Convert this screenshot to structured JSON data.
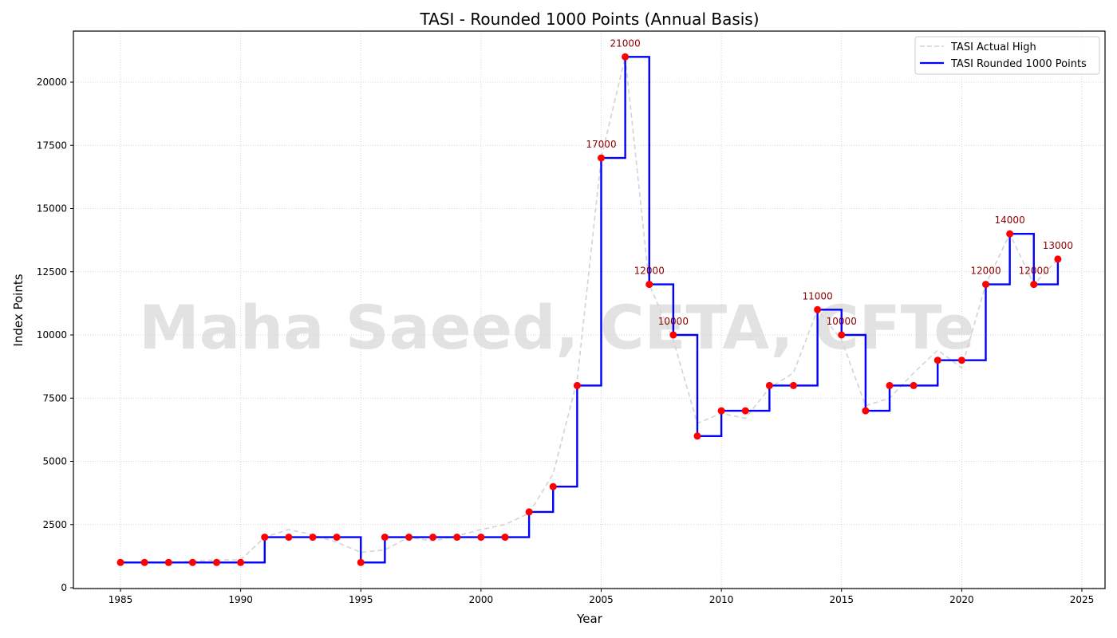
{
  "chart_data": {
    "type": "line",
    "title": "TASI - Rounded 1000 Points (Annual Basis)",
    "xlabel": "Year",
    "ylabel": "Index Points",
    "xlim": [
      1983,
      2026
    ],
    "ylim": [
      0,
      22000
    ],
    "x_ticks": [
      1985,
      1990,
      1995,
      2000,
      2005,
      2010,
      2015,
      2020,
      2025
    ],
    "y_ticks": [
      0,
      2500,
      5000,
      7500,
      10000,
      12500,
      15000,
      17500,
      20000
    ],
    "grid": true,
    "legend_position": "upper right",
    "watermark": "Maha Saeed, CETA, CFTe",
    "x": [
      1985,
      1986,
      1987,
      1988,
      1989,
      1990,
      1991,
      1992,
      1993,
      1994,
      1995,
      1996,
      1997,
      1998,
      1999,
      2000,
      2001,
      2002,
      2003,
      2004,
      2005,
      2006,
      2007,
      2008,
      2009,
      2010,
      2011,
      2012,
      2013,
      2014,
      2015,
      2016,
      2017,
      2018,
      2019,
      2020,
      2021,
      2022,
      2023,
      2024
    ],
    "series": [
      {
        "name": "TASI Actual High",
        "style": "dashed",
        "color": "#d3d3d3",
        "values": [
          1000,
          1000,
          1000,
          1050,
          1100,
          1100,
          2000,
          2300,
          2100,
          1800,
          1400,
          1500,
          2000,
          1850,
          2050,
          2300,
          2500,
          2950,
          4500,
          8200,
          17000,
          21000,
          12000,
          9800,
          6500,
          6900,
          6700,
          7900,
          8500,
          11000,
          9800,
          7200,
          7500,
          8500,
          9400,
          8700,
          12000,
          14000,
          12000,
          13000
        ]
      },
      {
        "name": "TASI Rounded 1000 Points",
        "style": "step",
        "color": "#0000ff",
        "marker_color": "#ff0000",
        "values": [
          1000,
          1000,
          1000,
          1000,
          1000,
          1000,
          2000,
          2000,
          2000,
          2000,
          1000,
          2000,
          2000,
          2000,
          2000,
          2000,
          2000,
          3000,
          4000,
          8000,
          17000,
          21000,
          12000,
          10000,
          6000,
          7000,
          7000,
          8000,
          8000,
          11000,
          10000,
          7000,
          8000,
          8000,
          9000,
          9000,
          12000,
          14000,
          12000,
          13000
        ]
      }
    ],
    "annotations": [
      {
        "x": 2005,
        "y": 17000,
        "text": "17000"
      },
      {
        "x": 2006,
        "y": 21000,
        "text": "21000"
      },
      {
        "x": 2007,
        "y": 12000,
        "text": "12000"
      },
      {
        "x": 2008,
        "y": 10000,
        "text": "10000"
      },
      {
        "x": 2014,
        "y": 11000,
        "text": "11000"
      },
      {
        "x": 2015,
        "y": 10000,
        "text": "10000"
      },
      {
        "x": 2021,
        "y": 12000,
        "text": "12000"
      },
      {
        "x": 2022,
        "y": 14000,
        "text": "14000"
      },
      {
        "x": 2023,
        "y": 12000,
        "text": "12000"
      },
      {
        "x": 2024,
        "y": 13000,
        "text": "13000"
      }
    ]
  },
  "legend": {
    "items": [
      {
        "label": "TASI Actual High"
      },
      {
        "label": "TASI Rounded 1000 Points"
      }
    ]
  }
}
